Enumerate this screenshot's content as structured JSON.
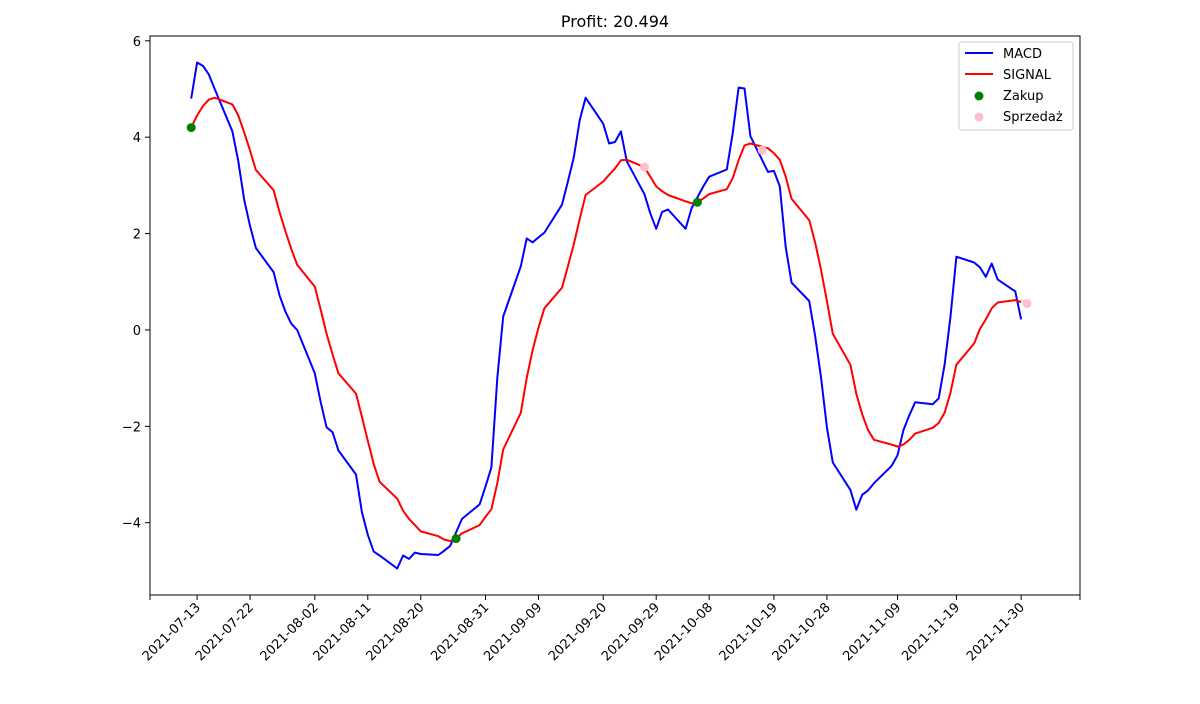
{
  "chart_data": {
    "type": "line",
    "title": "Profit: 20.494",
    "xlabel": "",
    "ylabel": "",
    "ylim": [
      -5.5,
      6.1
    ],
    "xlim": [
      "2021-07-05",
      "2021-12-10"
    ],
    "x_ticks": [
      "2021-07-13",
      "2021-07-22",
      "2021-08-02",
      "2021-08-11",
      "2021-08-20",
      "2021-08-31",
      "2021-09-09",
      "2021-09-20",
      "2021-09-29",
      "2021-10-08",
      "2021-10-19",
      "2021-10-28",
      "2021-11-09",
      "2021-11-19",
      "2021-11-30"
    ],
    "y_ticks": [
      -4,
      -2,
      0,
      2,
      4,
      6
    ],
    "y_tick_labels": [
      "−4",
      "−2",
      "0",
      "2",
      "4",
      "6"
    ],
    "legend_position": "top-right",
    "grid": false,
    "series": [
      {
        "name": "MACD",
        "kind": "line",
        "color": "#0000ff",
        "points": [
          [
            "2021-07-12",
            4.8
          ],
          [
            "2021-07-13",
            5.55
          ],
          [
            "2021-07-14",
            5.48
          ],
          [
            "2021-07-15",
            5.3
          ],
          [
            "2021-07-16",
            5.0
          ],
          [
            "2021-07-19",
            4.12
          ],
          [
            "2021-07-20",
            3.5
          ],
          [
            "2021-07-21",
            2.7
          ],
          [
            "2021-07-22",
            2.15
          ],
          [
            "2021-07-23",
            1.7
          ],
          [
            "2021-07-26",
            1.2
          ],
          [
            "2021-07-27",
            0.72
          ],
          [
            "2021-07-28",
            0.38
          ],
          [
            "2021-07-29",
            0.13
          ],
          [
            "2021-07-30",
            0.0
          ],
          [
            "2021-08-02",
            -0.9
          ],
          [
            "2021-08-03",
            -1.5
          ],
          [
            "2021-08-04",
            -2.02
          ],
          [
            "2021-08-05",
            -2.12
          ],
          [
            "2021-08-06",
            -2.5
          ],
          [
            "2021-08-09",
            -3.0
          ],
          [
            "2021-08-10",
            -3.78
          ],
          [
            "2021-08-11",
            -4.25
          ],
          [
            "2021-08-12",
            -4.6
          ],
          [
            "2021-08-13",
            -4.68
          ],
          [
            "2021-08-16",
            -4.95
          ],
          [
            "2021-08-17",
            -4.68
          ],
          [
            "2021-08-18",
            -4.75
          ],
          [
            "2021-08-19",
            -4.62
          ],
          [
            "2021-08-20",
            -4.65
          ],
          [
            "2021-08-23",
            -4.67
          ],
          [
            "2021-08-24",
            -4.58
          ],
          [
            "2021-08-25",
            -4.48
          ],
          [
            "2021-08-26",
            -4.2
          ],
          [
            "2021-08-27",
            -3.92
          ],
          [
            "2021-08-30",
            -3.62
          ],
          [
            "2021-08-31",
            -3.25
          ],
          [
            "2021-09-01",
            -2.85
          ],
          [
            "2021-09-02",
            -1.0
          ],
          [
            "2021-09-03",
            0.28
          ],
          [
            "2021-09-06",
            1.32
          ],
          [
            "2021-09-07",
            1.9
          ],
          [
            "2021-09-08",
            1.82
          ],
          [
            "2021-09-09",
            1.92
          ],
          [
            "2021-09-10",
            2.02
          ],
          [
            "2021-09-13",
            2.6
          ],
          [
            "2021-09-14",
            3.08
          ],
          [
            "2021-09-15",
            3.58
          ],
          [
            "2021-09-16",
            4.35
          ],
          [
            "2021-09-17",
            4.82
          ],
          [
            "2021-09-20",
            4.28
          ],
          [
            "2021-09-21",
            3.87
          ],
          [
            "2021-09-22",
            3.9
          ],
          [
            "2021-09-23",
            4.12
          ],
          [
            "2021-09-24",
            3.5
          ],
          [
            "2021-09-27",
            2.82
          ],
          [
            "2021-09-28",
            2.42
          ],
          [
            "2021-09-29",
            2.1
          ],
          [
            "2021-09-30",
            2.45
          ],
          [
            "2021-10-01",
            2.5
          ],
          [
            "2021-10-04",
            2.1
          ],
          [
            "2021-10-05",
            2.52
          ],
          [
            "2021-10-06",
            2.75
          ],
          [
            "2021-10-07",
            2.98
          ],
          [
            "2021-10-08",
            3.18
          ],
          [
            "2021-10-11",
            3.33
          ],
          [
            "2021-10-12",
            4.08
          ],
          [
            "2021-10-13",
            5.03
          ],
          [
            "2021-10-14",
            5.01
          ],
          [
            "2021-10-15",
            4.02
          ],
          [
            "2021-10-18",
            3.28
          ],
          [
            "2021-10-19",
            3.3
          ],
          [
            "2021-10-20",
            2.98
          ],
          [
            "2021-10-21",
            1.72
          ],
          [
            "2021-10-22",
            0.98
          ],
          [
            "2021-10-25",
            0.6
          ],
          [
            "2021-10-26",
            -0.12
          ],
          [
            "2021-10-27",
            -0.98
          ],
          [
            "2021-10-28",
            -2.02
          ],
          [
            "2021-10-29",
            -2.75
          ],
          [
            "2021-11-01",
            -3.32
          ],
          [
            "2021-11-02",
            -3.73
          ],
          [
            "2021-11-03",
            -3.42
          ],
          [
            "2021-11-04",
            -3.33
          ],
          [
            "2021-11-05",
            -3.18
          ],
          [
            "2021-11-08",
            -2.82
          ],
          [
            "2021-11-09",
            -2.6
          ],
          [
            "2021-11-10",
            -2.08
          ],
          [
            "2021-11-11",
            -1.77
          ],
          [
            "2021-11-12",
            -1.5
          ],
          [
            "2021-11-15",
            -1.54
          ],
          [
            "2021-11-16",
            -1.42
          ],
          [
            "2021-11-17",
            -0.72
          ],
          [
            "2021-11-18",
            0.28
          ],
          [
            "2021-11-19",
            1.52
          ],
          [
            "2021-11-22",
            1.4
          ],
          [
            "2021-11-23",
            1.3
          ],
          [
            "2021-11-24",
            1.1
          ],
          [
            "2021-11-25",
            1.38
          ],
          [
            "2021-11-26",
            1.05
          ],
          [
            "2021-11-29",
            0.8
          ],
          [
            "2021-11-30",
            0.22
          ]
        ]
      },
      {
        "name": "SIGNAL",
        "kind": "line",
        "color": "#ff0000",
        "points": [
          [
            "2021-07-12",
            4.2
          ],
          [
            "2021-07-13",
            4.45
          ],
          [
            "2021-07-14",
            4.65
          ],
          [
            "2021-07-15",
            4.78
          ],
          [
            "2021-07-16",
            4.82
          ],
          [
            "2021-07-19",
            4.68
          ],
          [
            "2021-07-20",
            4.45
          ],
          [
            "2021-07-21",
            4.1
          ],
          [
            "2021-07-22",
            3.72
          ],
          [
            "2021-07-23",
            3.32
          ],
          [
            "2021-07-26",
            2.9
          ],
          [
            "2021-07-27",
            2.45
          ],
          [
            "2021-07-28",
            2.05
          ],
          [
            "2021-07-29",
            1.68
          ],
          [
            "2021-07-30",
            1.35
          ],
          [
            "2021-08-02",
            0.9
          ],
          [
            "2021-08-03",
            0.42
          ],
          [
            "2021-08-04",
            -0.08
          ],
          [
            "2021-08-05",
            -0.5
          ],
          [
            "2021-08-06",
            -0.9
          ],
          [
            "2021-08-09",
            -1.32
          ],
          [
            "2021-08-10",
            -1.8
          ],
          [
            "2021-08-11",
            -2.3
          ],
          [
            "2021-08-12",
            -2.78
          ],
          [
            "2021-08-13",
            -3.15
          ],
          [
            "2021-08-16",
            -3.5
          ],
          [
            "2021-08-17",
            -3.75
          ],
          [
            "2021-08-18",
            -3.92
          ],
          [
            "2021-08-19",
            -4.05
          ],
          [
            "2021-08-20",
            -4.18
          ],
          [
            "2021-08-23",
            -4.28
          ],
          [
            "2021-08-24",
            -4.35
          ],
          [
            "2021-08-25",
            -4.38
          ],
          [
            "2021-08-26",
            -4.33
          ],
          [
            "2021-08-27",
            -4.22
          ],
          [
            "2021-08-30",
            -4.05
          ],
          [
            "2021-08-31",
            -3.88
          ],
          [
            "2021-09-01",
            -3.72
          ],
          [
            "2021-09-02",
            -3.18
          ],
          [
            "2021-09-03",
            -2.48
          ],
          [
            "2021-09-06",
            -1.72
          ],
          [
            "2021-09-07",
            -1.0
          ],
          [
            "2021-09-08",
            -0.42
          ],
          [
            "2021-09-09",
            0.05
          ],
          [
            "2021-09-10",
            0.45
          ],
          [
            "2021-09-13",
            0.88
          ],
          [
            "2021-09-14",
            1.32
          ],
          [
            "2021-09-15",
            1.78
          ],
          [
            "2021-09-16",
            2.3
          ],
          [
            "2021-09-17",
            2.8
          ],
          [
            "2021-09-20",
            3.08
          ],
          [
            "2021-09-21",
            3.22
          ],
          [
            "2021-09-22",
            3.35
          ],
          [
            "2021-09-23",
            3.52
          ],
          [
            "2021-09-24",
            3.53
          ],
          [
            "2021-09-27",
            3.38
          ],
          [
            "2021-09-28",
            3.18
          ],
          [
            "2021-09-29",
            2.98
          ],
          [
            "2021-09-30",
            2.88
          ],
          [
            "2021-10-01",
            2.8
          ],
          [
            "2021-10-04",
            2.67
          ],
          [
            "2021-10-05",
            2.63
          ],
          [
            "2021-10-06",
            2.65
          ],
          [
            "2021-10-07",
            2.73
          ],
          [
            "2021-10-08",
            2.82
          ],
          [
            "2021-10-11",
            2.92
          ],
          [
            "2021-10-12",
            3.15
          ],
          [
            "2021-10-13",
            3.52
          ],
          [
            "2021-10-14",
            3.83
          ],
          [
            "2021-10-15",
            3.87
          ],
          [
            "2021-10-18",
            3.77
          ],
          [
            "2021-10-19",
            3.67
          ],
          [
            "2021-10-20",
            3.53
          ],
          [
            "2021-10-21",
            3.18
          ],
          [
            "2021-10-22",
            2.72
          ],
          [
            "2021-10-25",
            2.28
          ],
          [
            "2021-10-26",
            1.82
          ],
          [
            "2021-10-27",
            1.25
          ],
          [
            "2021-10-28",
            0.6
          ],
          [
            "2021-10-29",
            -0.08
          ],
          [
            "2021-11-01",
            -0.72
          ],
          [
            "2021-11-02",
            -1.32
          ],
          [
            "2021-11-03",
            -1.75
          ],
          [
            "2021-11-04",
            -2.08
          ],
          [
            "2021-11-05",
            -2.28
          ],
          [
            "2021-11-08",
            -2.38
          ],
          [
            "2021-11-09",
            -2.42
          ],
          [
            "2021-11-10",
            -2.38
          ],
          [
            "2021-11-11",
            -2.28
          ],
          [
            "2021-11-12",
            -2.15
          ],
          [
            "2021-11-15",
            -2.03
          ],
          [
            "2021-11-16",
            -1.93
          ],
          [
            "2021-11-17",
            -1.72
          ],
          [
            "2021-11-18",
            -1.3
          ],
          [
            "2021-11-19",
            -0.72
          ],
          [
            "2021-11-22",
            -0.28
          ],
          [
            "2021-11-23",
            0.02
          ],
          [
            "2021-11-24",
            0.22
          ],
          [
            "2021-11-25",
            0.45
          ],
          [
            "2021-11-26",
            0.57
          ],
          [
            "2021-11-29",
            0.62
          ],
          [
            "2021-11-30",
            0.58
          ]
        ]
      },
      {
        "name": "Zakup",
        "kind": "scatter",
        "color": "#008000",
        "points": [
          [
            "2021-07-12",
            4.2
          ],
          [
            "2021-08-26",
            -4.33
          ],
          [
            "2021-10-06",
            2.65
          ]
        ]
      },
      {
        "name": "Sprzedaż",
        "kind": "scatter",
        "color": "#ffc0cb",
        "points": [
          [
            "2021-09-27",
            3.38
          ],
          [
            "2021-10-17",
            3.73
          ],
          [
            "2021-12-01",
            0.55
          ]
        ]
      }
    ]
  }
}
